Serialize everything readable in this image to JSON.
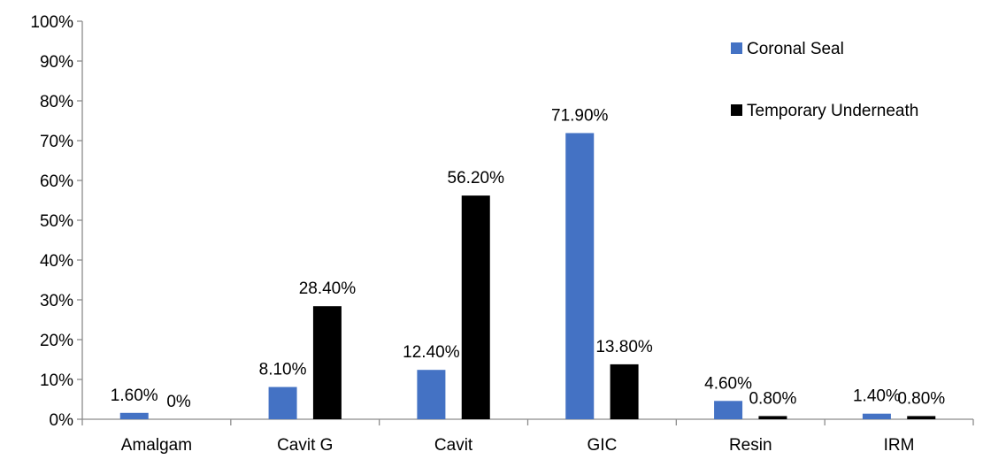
{
  "chart_data": {
    "type": "bar",
    "title": "",
    "xlabel": "",
    "ylabel": "",
    "ylim": [
      0,
      100
    ],
    "y_tick_step": 10,
    "y_tick_format": "percent",
    "grid": false,
    "legend_position": "top-right",
    "categories": [
      "Amalgam",
      "Cavit G",
      "Cavit",
      "GIC",
      "Resin",
      "IRM"
    ],
    "series": [
      {
        "name": "Coronal Seal",
        "color": "#4472C4",
        "values": [
          1.6,
          8.1,
          12.4,
          71.9,
          4.6,
          1.4
        ],
        "labels": [
          "1.60%",
          "8.10%",
          "12.40%",
          "71.90%",
          "4.60%",
          "1.40%"
        ]
      },
      {
        "name": "Temporary Underneath",
        "color": "#000000",
        "values": [
          0,
          28.4,
          56.2,
          13.8,
          0.8,
          0.8
        ],
        "labels": [
          "0%",
          "28.40%",
          "56.20%",
          "13.80%",
          "0.80%",
          "0.80%"
        ]
      }
    ],
    "y_tick_labels": [
      "0%",
      "10%",
      "20%",
      "30%",
      "40%",
      "50%",
      "60%",
      "70%",
      "80%",
      "90%",
      "100%"
    ]
  }
}
